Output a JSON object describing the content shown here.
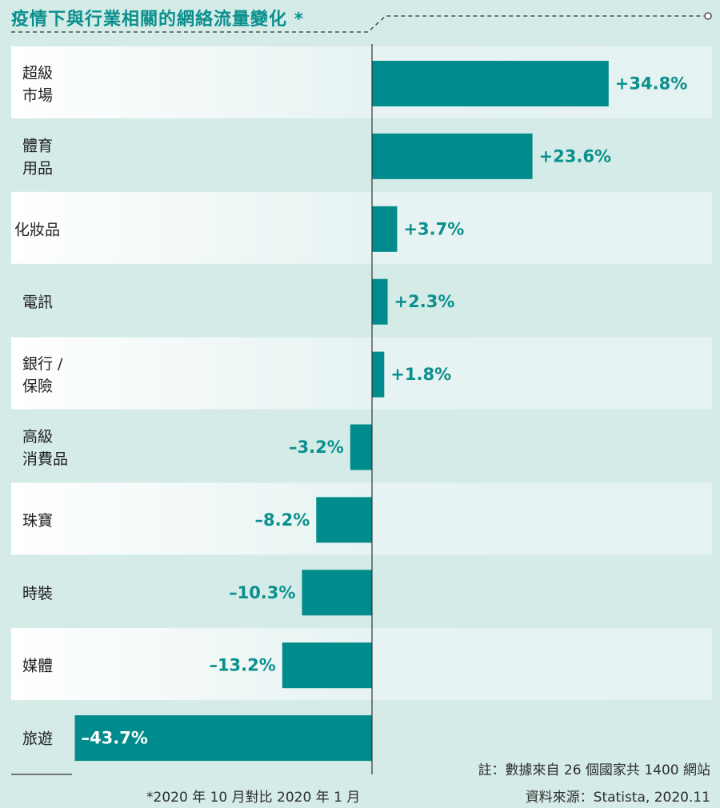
{
  "title": "疫情下與行業相關的網絡流量變化 *",
  "note": "註：數據來自 26 個國家共 1400 網站",
  "source": "資料來源：Statista, 2020.11",
  "footnote": "*2020 年 10 月對比 2020 年 1 月",
  "colors": {
    "bar": "#008b8c",
    "label": "#0a8f8d",
    "label_on_bar": "#ffffff",
    "background": "#d4ebe7"
  },
  "chart_data": {
    "type": "bar",
    "orientation": "horizontal",
    "title": "疫情下與行業相關的網絡流量變化 *",
    "categories": [
      [
        "超級",
        "市場"
      ],
      [
        "體育",
        "用品"
      ],
      [
        "化妝品"
      ],
      [
        "電訊"
      ],
      [
        "銀行 /",
        "保險"
      ],
      [
        "高級",
        "消費品"
      ],
      [
        "珠寶"
      ],
      [
        "時裝"
      ],
      [
        "媒體"
      ],
      [
        "旅遊"
      ]
    ],
    "values": [
      34.8,
      23.6,
      3.7,
      2.3,
      1.8,
      -3.2,
      -8.2,
      -10.3,
      -13.2,
      -43.7
    ],
    "value_labels": [
      "+34.8%",
      "+23.6%",
      "+3.7%",
      "+2.3%",
      "+1.8%",
      "–3.2%",
      "–8.2%",
      "–10.3%",
      "–13.2%",
      "–43.7%"
    ],
    "units": "%",
    "xlim": [
      -43.7,
      34.8
    ],
    "grid": false,
    "legend": "none"
  }
}
